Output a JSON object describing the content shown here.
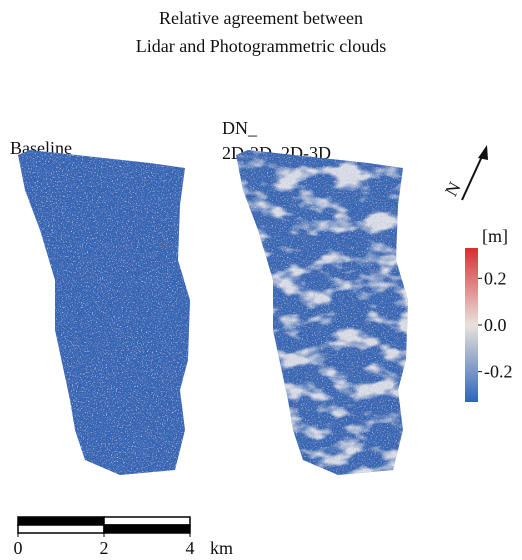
{
  "title": [
    "Relative agreement between",
    "Lidar and Photogrammetric clouds"
  ],
  "panels": [
    {
      "label": [
        "Baseline"
      ]
    },
    {
      "label": [
        "DN_",
        "2D-2D_2D-3D"
      ]
    }
  ],
  "north": "N",
  "colorbar": {
    "label": "[m]",
    "lim": [
      -0.33,
      0.33
    ],
    "ticks": [
      0.2,
      {
        "value": 0,
        "label": "0.0"
      },
      -0.2
    ]
  },
  "scalebar": {
    "lim": [
      0,
      4
    ],
    "ticks": [
      0,
      2,
      4
    ],
    "unit": "km"
  }
}
